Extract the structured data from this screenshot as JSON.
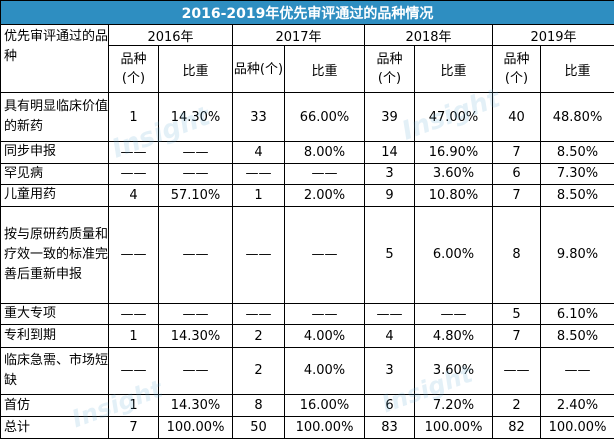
{
  "title": "2016-2019年优先审评通过的品种情况",
  "row_header": "优先审评通过的品种",
  "years": [
    "2016年",
    "2017年",
    "2018年",
    "2019年"
  ],
  "sub_headers": {
    "count": "品种(个)",
    "ratio": "比重"
  },
  "rows": [
    {
      "name": "具有明显临床价值的新药",
      "v": [
        "1",
        "14.30%",
        "33",
        "66.00%",
        "39",
        "47.00%",
        "40",
        "48.80%"
      ]
    },
    {
      "name": "同步申报",
      "v": [
        "——",
        "——",
        "4",
        "8.00%",
        "14",
        "16.90%",
        "7",
        "8.50%"
      ]
    },
    {
      "name": "罕见病",
      "v": [
        "——",
        "——",
        "——",
        "——",
        "3",
        "3.60%",
        "6",
        "7.30%"
      ]
    },
    {
      "name": "儿童用药",
      "v": [
        "4",
        "57.10%",
        "1",
        "2.00%",
        "9",
        "10.80%",
        "7",
        "8.50%"
      ]
    },
    {
      "name": "按与原研药质量和疗效一致的标准完善后重新申报",
      "v": [
        "——",
        "——",
        "——",
        "——",
        "5",
        "6.00%",
        "8",
        "9.80%"
      ]
    },
    {
      "name": "重大专项",
      "v": [
        "——",
        "——",
        "——",
        "——",
        "——",
        "——",
        "5",
        "6.10%"
      ]
    },
    {
      "name": "专利到期",
      "v": [
        "1",
        "14.30%",
        "2",
        "4.00%",
        "4",
        "4.80%",
        "7",
        "8.50%"
      ]
    },
    {
      "name": "临床急需、市场短缺",
      "v": [
        "——",
        "——",
        "2",
        "4.00%",
        "3",
        "3.60%",
        "——",
        "——"
      ]
    },
    {
      "name": "首仿",
      "v": [
        "1",
        "14.30%",
        "8",
        "16.00%",
        "6",
        "7.20%",
        "2",
        "2.40%"
      ]
    },
    {
      "name": "总计",
      "v": [
        "7",
        "100.00%",
        "50",
        "100.00%",
        "83",
        "100.00%",
        "82",
        "100.00%"
      ]
    }
  ],
  "watermark": "Insight",
  "colors": {
    "title_bg": "#2e8ec1",
    "title_text": "#ffffff"
  }
}
